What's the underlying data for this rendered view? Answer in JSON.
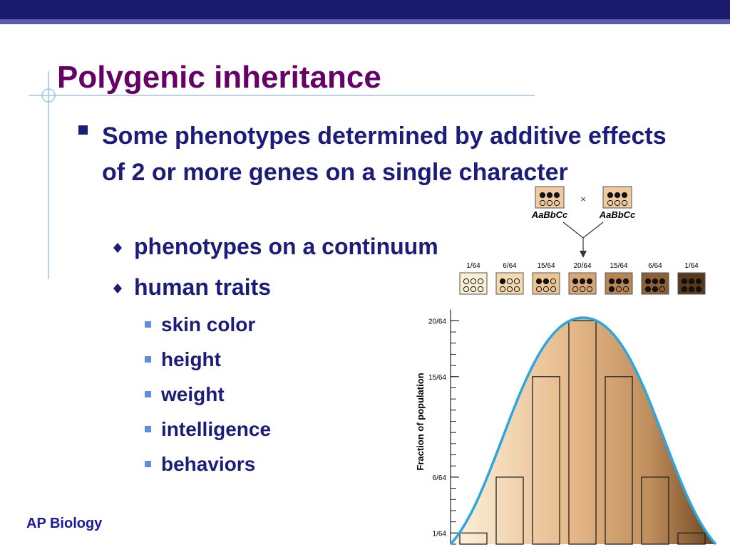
{
  "header": {
    "title": "Polygenic inheritance"
  },
  "bullets": [
    {
      "text": "Some phenotypes determined by additive effects of 2 or more genes on a single character",
      "children": [
        {
          "text": "phenotypes on a continuum"
        },
        {
          "text": "human traits",
          "children": [
            {
              "text": "skin color"
            },
            {
              "text": "height"
            },
            {
              "text": "weight"
            },
            {
              "text": "intelligence"
            },
            {
              "text": "behaviors"
            }
          ]
        }
      ]
    }
  ],
  "footer": "AP Biology",
  "figure": {
    "parents": [
      "AaBbCc",
      "AaBbCc"
    ],
    "cross": "×",
    "y_label": "Fraction of population",
    "ylim": [
      0,
      21
    ],
    "yticks": [
      {
        "value": 1,
        "label": "1/64"
      },
      {
        "value": 6,
        "label": "6/64"
      },
      {
        "value": 15,
        "label": "15/64"
      },
      {
        "value": 20,
        "label": "20/64"
      }
    ],
    "classes": [
      {
        "label": "1/64",
        "value": 1,
        "color": "#fbeed3"
      },
      {
        "label": "6/64",
        "value": 6,
        "color": "#f4d8b0"
      },
      {
        "label": "15/64",
        "value": 15,
        "color": "#ebc494"
      },
      {
        "label": "20/64",
        "value": 20,
        "color": "#d9a676"
      },
      {
        "label": "15/64",
        "value": 15,
        "color": "#b88555"
      },
      {
        "label": "6/64",
        "value": 6,
        "color": "#8c5f34"
      },
      {
        "label": "1/64",
        "value": 1,
        "color": "#5a391a"
      }
    ]
  }
}
